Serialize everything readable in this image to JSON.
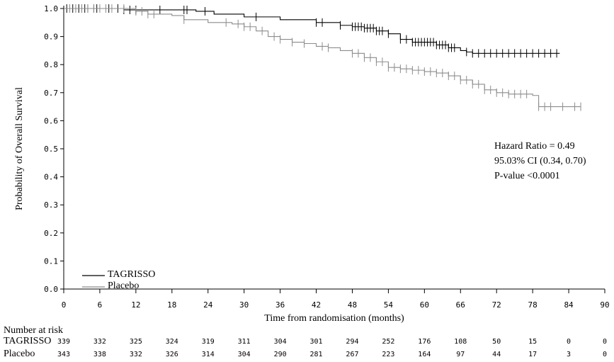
{
  "chart_data": {
    "type": "line",
    "subtype": "kaplan-meier",
    "xlabel": "Time from randomisation (months)",
    "ylabel": "Probability of Overall Survival",
    "xlim": [
      0,
      90
    ],
    "ylim": [
      0.0,
      1.0
    ],
    "x_ticks": [
      "0",
      "6",
      "12",
      "18",
      "24",
      "30",
      "36",
      "42",
      "48",
      "54",
      "60",
      "66",
      "72",
      "78",
      "84",
      "90"
    ],
    "y_ticks": [
      "0.0",
      "0.1",
      "0.2",
      "0.3",
      "0.4",
      "0.5",
      "0.6",
      "0.7",
      "0.8",
      "0.9",
      "1.0"
    ],
    "grid": false,
    "legend_position": "bottom-left",
    "colors": {
      "TAGRISSO": "#000000",
      "Placebo": "#8c8c8c"
    },
    "series": [
      {
        "name": "TAGRISSO",
        "x": [
          0,
          10,
          16,
          22,
          25,
          30,
          36,
          42,
          46,
          48,
          50,
          52,
          54,
          56,
          58,
          62,
          64,
          66,
          67,
          68,
          82.5
        ],
        "y": [
          1.0,
          0.995,
          0.995,
          0.99,
          0.98,
          0.97,
          0.96,
          0.95,
          0.94,
          0.935,
          0.93,
          0.92,
          0.91,
          0.89,
          0.88,
          0.87,
          0.86,
          0.85,
          0.845,
          0.84,
          0.84
        ],
        "censor_x": [
          0.5,
          1,
          1.5,
          2,
          2.5,
          3,
          3.5,
          4,
          5,
          5.5,
          7.5,
          9,
          10,
          11,
          12,
          16,
          20,
          20.5,
          23.5,
          32,
          42,
          43,
          46,
          48,
          48.5,
          49,
          49.5,
          50,
          50.5,
          51,
          51.5,
          52,
          52.5,
          53,
          54,
          56,
          57,
          58,
          58.5,
          59,
          59.5,
          60,
          60.5,
          61,
          61.5,
          62,
          62.5,
          63,
          63.5,
          64,
          64.5,
          65,
          67,
          68,
          69,
          70,
          71,
          72,
          73,
          74,
          75,
          76,
          77,
          78,
          79,
          80,
          81,
          82
        ]
      },
      {
        "name": "Placebo",
        "x": [
          0,
          12,
          14,
          18,
          20,
          24,
          28,
          30,
          32,
          34,
          36,
          38,
          40,
          42,
          44,
          46,
          48,
          50,
          52,
          54,
          56,
          58,
          60,
          62,
          64,
          66,
          68,
          70,
          72,
          74,
          78,
          79,
          86
        ],
        "y": [
          1.0,
          0.99,
          0.98,
          0.975,
          0.96,
          0.95,
          0.945,
          0.935,
          0.92,
          0.9,
          0.89,
          0.88,
          0.875,
          0.865,
          0.86,
          0.85,
          0.84,
          0.825,
          0.81,
          0.79,
          0.785,
          0.78,
          0.775,
          0.77,
          0.76,
          0.745,
          0.73,
          0.71,
          0.7,
          0.695,
          0.69,
          0.65,
          0.65
        ],
        "censor_x": [
          1,
          2,
          3,
          4,
          5,
          6,
          7,
          8,
          10,
          12,
          13,
          14,
          15,
          20,
          27,
          29,
          30,
          31,
          33,
          35,
          36,
          38,
          40,
          43,
          44,
          48,
          49,
          50,
          51,
          52,
          53,
          54,
          55,
          56,
          57,
          58,
          59,
          60,
          61,
          62,
          63,
          64,
          65,
          66,
          67,
          68,
          69,
          70,
          71,
          72,
          73,
          74,
          75,
          76,
          77,
          79,
          80,
          81,
          83,
          85,
          86
        ]
      }
    ],
    "annotations": [
      "Hazard Ratio = 0.49",
      "95.03% CI (0.34, 0.70)",
      "P-value <0.0001"
    ],
    "risk_table": {
      "title": "Number at risk",
      "rows": [
        {
          "label": "TAGRISSO",
          "values": [
            "339",
            "332",
            "325",
            "324",
            "319",
            "311",
            "304",
            "301",
            "294",
            "252",
            "176",
            "108",
            "50",
            "15",
            "0",
            "0"
          ]
        },
        {
          "label": "Placebo",
          "values": [
            "343",
            "338",
            "332",
            "326",
            "314",
            "304",
            "290",
            "281",
            "267",
            "223",
            "164",
            "97",
            "44",
            "17",
            "3",
            "0"
          ]
        }
      ]
    }
  }
}
